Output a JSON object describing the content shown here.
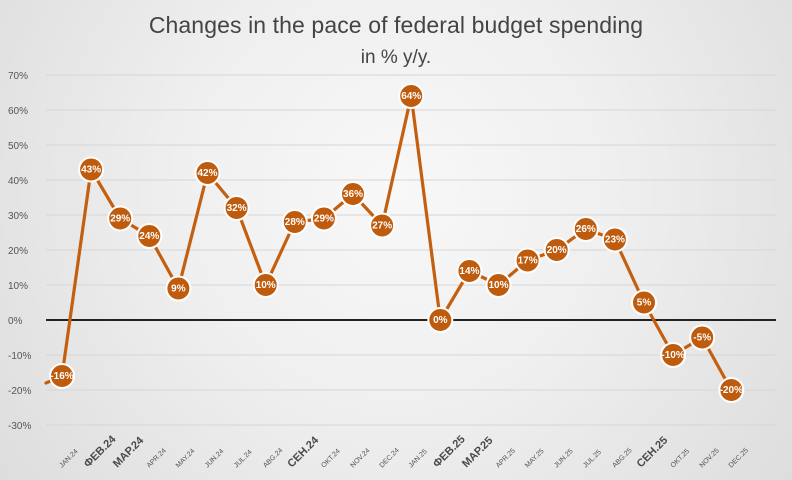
{
  "chart_data": {
    "type": "line",
    "title": "Changes in the pace of federal budget spending",
    "subtitle": "in % y/y.",
    "xlabel": "",
    "ylabel": "",
    "ylim": [
      -30,
      70
    ],
    "yticks": [
      -30,
      -20,
      -10,
      0,
      10,
      20,
      30,
      40,
      50,
      60,
      70
    ],
    "ytick_labels": [
      "-30%",
      "-20%",
      "-10%",
      "0%",
      "10%",
      "20%",
      "30%",
      "40%",
      "50%",
      "60%",
      "70%"
    ],
    "grid": true,
    "categories": [
      "JAN.24",
      "ФЕВ.24",
      "МАР.24",
      "APR.24",
      "MAY.24",
      "JUN.24",
      "JUL.24",
      "АВG.24",
      "СЕН.24",
      "OKT.24",
      "NOV.24",
      "DEC.24",
      "JAN.25",
      "ФЕВ.25",
      "МАР.25",
      "APR.25",
      "MAY.25",
      "JUN.25",
      "JUL.25",
      "ABG.25",
      "СЕН.25",
      "OKT.25",
      "NOV.25",
      "DEC.25"
    ],
    "category_styles": [
      "minor",
      "major",
      "major",
      "minor",
      "minor",
      "minor",
      "minor",
      "minor",
      "major",
      "minor",
      "minor",
      "minor",
      "minor",
      "major",
      "major",
      "minor",
      "minor",
      "minor",
      "minor",
      "minor",
      "major",
      "minor",
      "minor",
      "minor"
    ],
    "values": [
      -16,
      43,
      29,
      24,
      9,
      42,
      32,
      10,
      28,
      29,
      36,
      27,
      64,
      0,
      14,
      10,
      17,
      20,
      26,
      23,
      5,
      -10,
      -5,
      -20
    ],
    "data_labels": [
      "-16%",
      "43%",
      "29%",
      "24%",
      "9%",
      "42%",
      "32%",
      "10%",
      "28%",
      "29%",
      "36%",
      "27%",
      "64%",
      "0%",
      "14%",
      "10%",
      "17%",
      "20%",
      "26%",
      "23%",
      "5%",
      "-10%",
      "-5%",
      "-20%"
    ],
    "entry_value": -18,
    "series_color": "#c45f10",
    "marker_color": "#bf5b0d"
  }
}
